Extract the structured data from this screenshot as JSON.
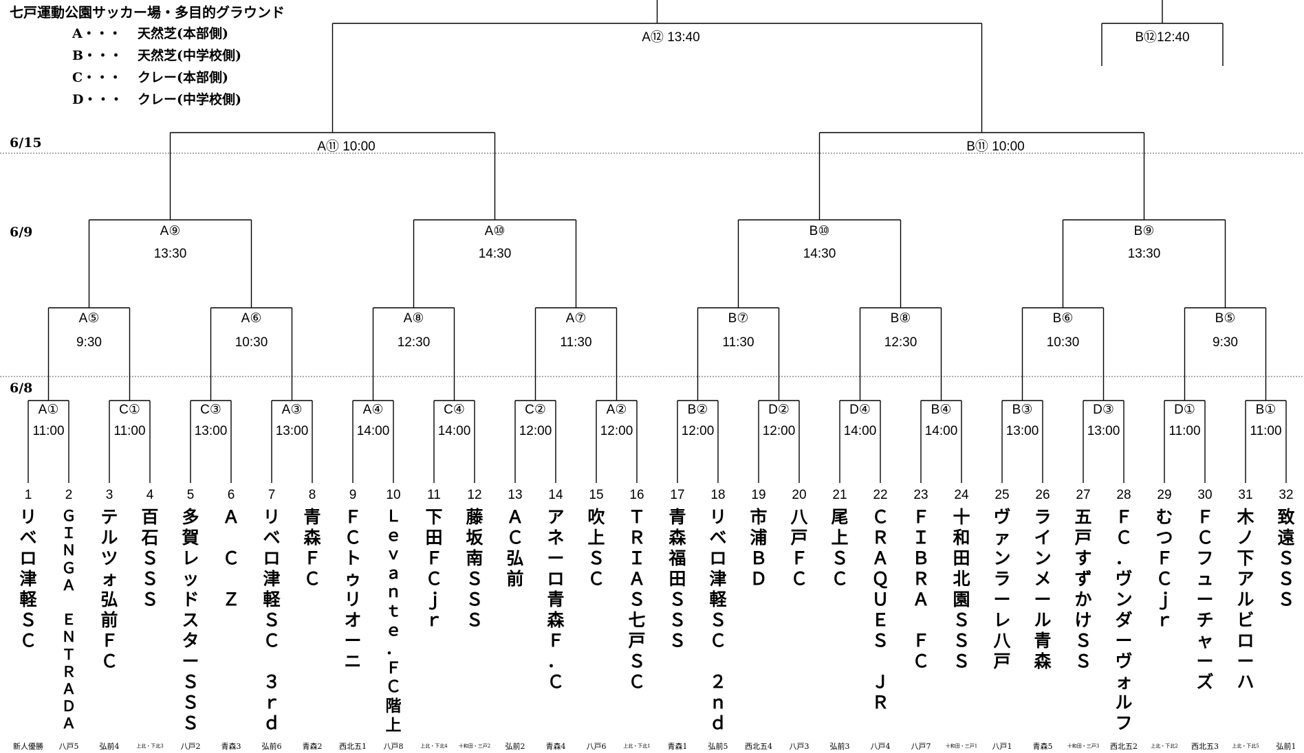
{
  "venue": {
    "title": "七戸運動公園サッカー場・多目的グラウンド",
    "legend": [
      {
        "key": "A・・・",
        "label": "天然芝(本部側)"
      },
      {
        "key": "B・・・",
        "label": "天然芝(中学校側)"
      },
      {
        "key": "C・・・",
        "label": "クレー(本部側)"
      },
      {
        "key": "D・・・",
        "label": "クレー(中学校側)"
      }
    ]
  },
  "dates": {
    "r3": "6/15",
    "r2": "6/9",
    "r1": "6/8"
  },
  "round1": [
    {
      "code": "A①",
      "time": "11:00"
    },
    {
      "code": "C①",
      "time": "11:00"
    },
    {
      "code": "C③",
      "time": "13:00"
    },
    {
      "code": "A③",
      "time": "13:00"
    },
    {
      "code": "A④",
      "time": "14:00"
    },
    {
      "code": "C④",
      "time": "14:00"
    },
    {
      "code": "C②",
      "time": "12:00"
    },
    {
      "code": "A②",
      "time": "12:00"
    },
    {
      "code": "B②",
      "time": "12:00"
    },
    {
      "code": "D②",
      "time": "12:00"
    },
    {
      "code": "D④",
      "time": "14:00"
    },
    {
      "code": "B④",
      "time": "14:00"
    },
    {
      "code": "B③",
      "time": "13:00"
    },
    {
      "code": "D③",
      "time": "13:00"
    },
    {
      "code": "D①",
      "time": "11:00"
    },
    {
      "code": "B①",
      "time": "11:00"
    }
  ],
  "round2": [
    {
      "code": "A⑤",
      "time": "9:30"
    },
    {
      "code": "A⑥",
      "time": "10:30"
    },
    {
      "code": "A⑧",
      "time": "12:30"
    },
    {
      "code": "A⑦",
      "time": "11:30"
    },
    {
      "code": "B⑦",
      "time": "11:30"
    },
    {
      "code": "B⑧",
      "time": "12:30"
    },
    {
      "code": "B⑥",
      "time": "10:30"
    },
    {
      "code": "B⑤",
      "time": "9:30"
    }
  ],
  "round3": [
    {
      "code": "A⑨",
      "time": "13:30"
    },
    {
      "code": "A⑩",
      "time": "14:30"
    },
    {
      "code": "B⑩",
      "time": "14:30"
    },
    {
      "code": "B⑨",
      "time": "13:30"
    }
  ],
  "round4": [
    {
      "label": "A⑪  10:00"
    },
    {
      "label": "B⑪ 10:00"
    }
  ],
  "round5": [
    {
      "label": "A⑫  13:40"
    },
    {
      "label": "B⑫12:40"
    }
  ],
  "teams": [
    {
      "num": "1",
      "name": "リベロ津軽ＳＣ",
      "seed": "新人優勝"
    },
    {
      "num": "2",
      "name": "ＧＩＮＧＡ　ＥＮＴＲＡＤＡ",
      "seed": "八戸5"
    },
    {
      "num": "3",
      "name": "テルツォ弘前ＦＣ",
      "seed": "弘前4"
    },
    {
      "num": "4",
      "name": "百石ＳＳＳ",
      "seed": "上北・下北3"
    },
    {
      "num": "5",
      "name": "多賀レッドスターＳＳＳ",
      "seed": "八戸2"
    },
    {
      "num": "6",
      "name": "Ａ　Ｃ　Ｚ",
      "seed": "青森3"
    },
    {
      "num": "7",
      "name": "リベロ津軽ＳＣ　３ｒｄ",
      "seed": "弘前6"
    },
    {
      "num": "8",
      "name": "青森ＦＣ",
      "seed": "青森2"
    },
    {
      "num": "9",
      "name": "ＦＣトゥリオーニ",
      "seed": "西北五1"
    },
    {
      "num": "10",
      "name": "Ｌｅｖａｎｔｅ．ＦＣ階上",
      "seed": "八戸8"
    },
    {
      "num": "11",
      "name": "下田ＦＣｊｒ",
      "seed": "上北・下北4"
    },
    {
      "num": "12",
      "name": "藤坂南ＳＳＳ",
      "seed": "十和田・三戸2"
    },
    {
      "num": "13",
      "name": "ＡＣ弘前",
      "seed": "弘前2"
    },
    {
      "num": "14",
      "name": "アネーロ青森Ｆ．Ｃ",
      "seed": "青森4"
    },
    {
      "num": "15",
      "name": "吹上ＳＣ",
      "seed": "八戸6"
    },
    {
      "num": "16",
      "name": "ＴＲＩＡＳ七戸ＳＣ",
      "seed": "上北・下北1"
    },
    {
      "num": "17",
      "name": "青森福田ＳＳＳ",
      "seed": "青森1"
    },
    {
      "num": "18",
      "name": "リベロ津軽ＳＣ　２ｎｄ",
      "seed": "弘前5"
    },
    {
      "num": "19",
      "name": "市浦ＢＤ",
      "seed": "西北五4"
    },
    {
      "num": "20",
      "name": "八戸ＦＣ",
      "seed": "八戸3"
    },
    {
      "num": "21",
      "name": "尾上ＳＣ",
      "seed": "弘前3"
    },
    {
      "num": "22",
      "name": "ＣＲＡＱＵＥＳ　ＪＲ",
      "seed": "八戸4"
    },
    {
      "num": "23",
      "name": "ＦＩＢＲＡ　ＦＣ",
      "seed": "八戸7"
    },
    {
      "num": "24",
      "name": "十和田北園ＳＳＳ",
      "seed": "十和田・三戸1"
    },
    {
      "num": "25",
      "name": "ヴァンラーレ八戸",
      "seed": "八戸1"
    },
    {
      "num": "26",
      "name": "ラインメール青森",
      "seed": "青森5"
    },
    {
      "num": "27",
      "name": "五戸すずかけＳＳ",
      "seed": "十和田・三戸3"
    },
    {
      "num": "28",
      "name": "ＦＣ．ヴンダーヴォルフ",
      "seed": "西北五2"
    },
    {
      "num": "29",
      "name": "むつＦＣｊｒ",
      "seed": "上北・下北2"
    },
    {
      "num": "30",
      "name": "ＦＣフューチャーズ",
      "seed": "西北五3"
    },
    {
      "num": "31",
      "name": "木ノ下アルビローハ",
      "seed": "上北・下北5"
    },
    {
      "num": "32",
      "name": "致遠ＳＳＳ",
      "seed": "弘前1"
    }
  ]
}
